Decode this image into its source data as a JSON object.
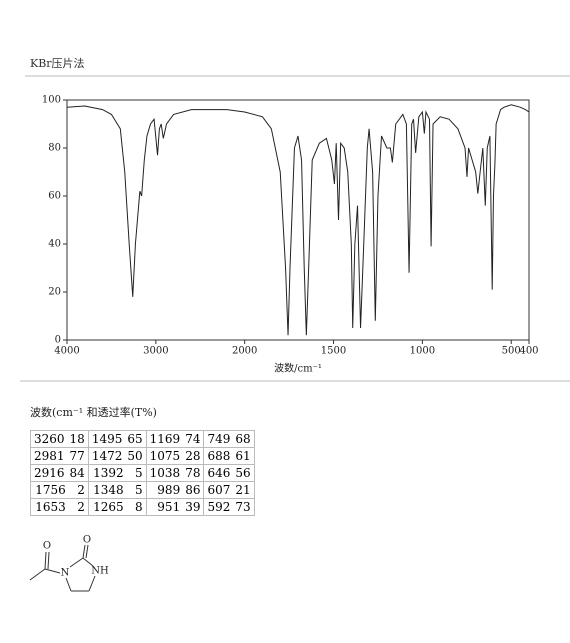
{
  "header": {
    "title": "KBr压片法"
  },
  "chart_data": {
    "type": "line",
    "x_label": "波数/cm⁻¹",
    "x": [
      4000,
      3800,
      3600,
      3500,
      3400,
      3350,
      3300,
      3260,
      3230,
      3180,
      3160,
      3130,
      3100,
      3060,
      3020,
      2981,
      2960,
      2940,
      2916,
      2880,
      2800,
      2600,
      2400,
      2200,
      2000,
      1900,
      1850,
      1800,
      1770,
      1756,
      1745,
      1720,
      1700,
      1680,
      1665,
      1653,
      1640,
      1620,
      1580,
      1540,
      1510,
      1495,
      1485,
      1472,
      1460,
      1440,
      1420,
      1400,
      1392,
      1380,
      1365,
      1348,
      1330,
      1310,
      1300,
      1280,
      1265,
      1250,
      1230,
      1200,
      1180,
      1169,
      1150,
      1110,
      1090,
      1075,
      1060,
      1050,
      1038,
      1020,
      1000,
      989,
      980,
      960,
      951,
      940,
      900,
      850,
      800,
      760,
      749,
      740,
      720,
      700,
      688,
      675,
      660,
      646,
      635,
      620,
      607,
      600,
      592,
      585,
      560,
      540,
      500,
      450,
      420,
      400
    ],
    "values": [
      97,
      97.5,
      96,
      94,
      88,
      70,
      40,
      18,
      40,
      62,
      60,
      75,
      85,
      90,
      92,
      77,
      88,
      90,
      84,
      90,
      94,
      96,
      96,
      96,
      95,
      93,
      88,
      70,
      30,
      2,
      30,
      80,
      85,
      75,
      30,
      2,
      30,
      75,
      82,
      84,
      75,
      65,
      82,
      50,
      82,
      80,
      70,
      40,
      5,
      40,
      56,
      5,
      40,
      80,
      88,
      70,
      8,
      60,
      85,
      80,
      80,
      74,
      90,
      94,
      90,
      28,
      90,
      92,
      78,
      93,
      95,
      86,
      95,
      92,
      39,
      90,
      93,
      92,
      88,
      80,
      68,
      80,
      75,
      70,
      61,
      70,
      80,
      56,
      80,
      85,
      21,
      60,
      73,
      90,
      96,
      97,
      98,
      97,
      96,
      95
    ],
    "color": "#222222",
    "xlim": [
      4000,
      400
    ],
    "xscale_break": 2000,
    "xticks": [
      4000,
      3000,
      2000,
      1500,
      1000,
      500,
      400
    ],
    "ylim": [
      0,
      100
    ],
    "yticks": [
      0,
      20,
      40,
      60,
      80,
      100
    ],
    "grid": false
  },
  "table": {
    "title": "波数(cm⁻¹ 和透过率(T%)",
    "rows": [
      [
        [
          3260,
          18
        ],
        [
          1495,
          65
        ],
        [
          1169,
          74
        ],
        [
          749,
          68
        ]
      ],
      [
        [
          2981,
          77
        ],
        [
          1472,
          50
        ],
        [
          1075,
          28
        ],
        [
          688,
          61
        ]
      ],
      [
        [
          2916,
          84
        ],
        [
          1392,
          5
        ],
        [
          1038,
          78
        ],
        [
          646,
          56
        ]
      ],
      [
        [
          1756,
          2
        ],
        [
          1348,
          5
        ],
        [
          989,
          86
        ],
        [
          607,
          21
        ]
      ],
      [
        [
          1653,
          2
        ],
        [
          1265,
          8
        ],
        [
          951,
          39
        ],
        [
          592,
          73
        ]
      ]
    ]
  },
  "structure": {
    "labels": [
      "O",
      "N",
      "O",
      "NH"
    ]
  }
}
